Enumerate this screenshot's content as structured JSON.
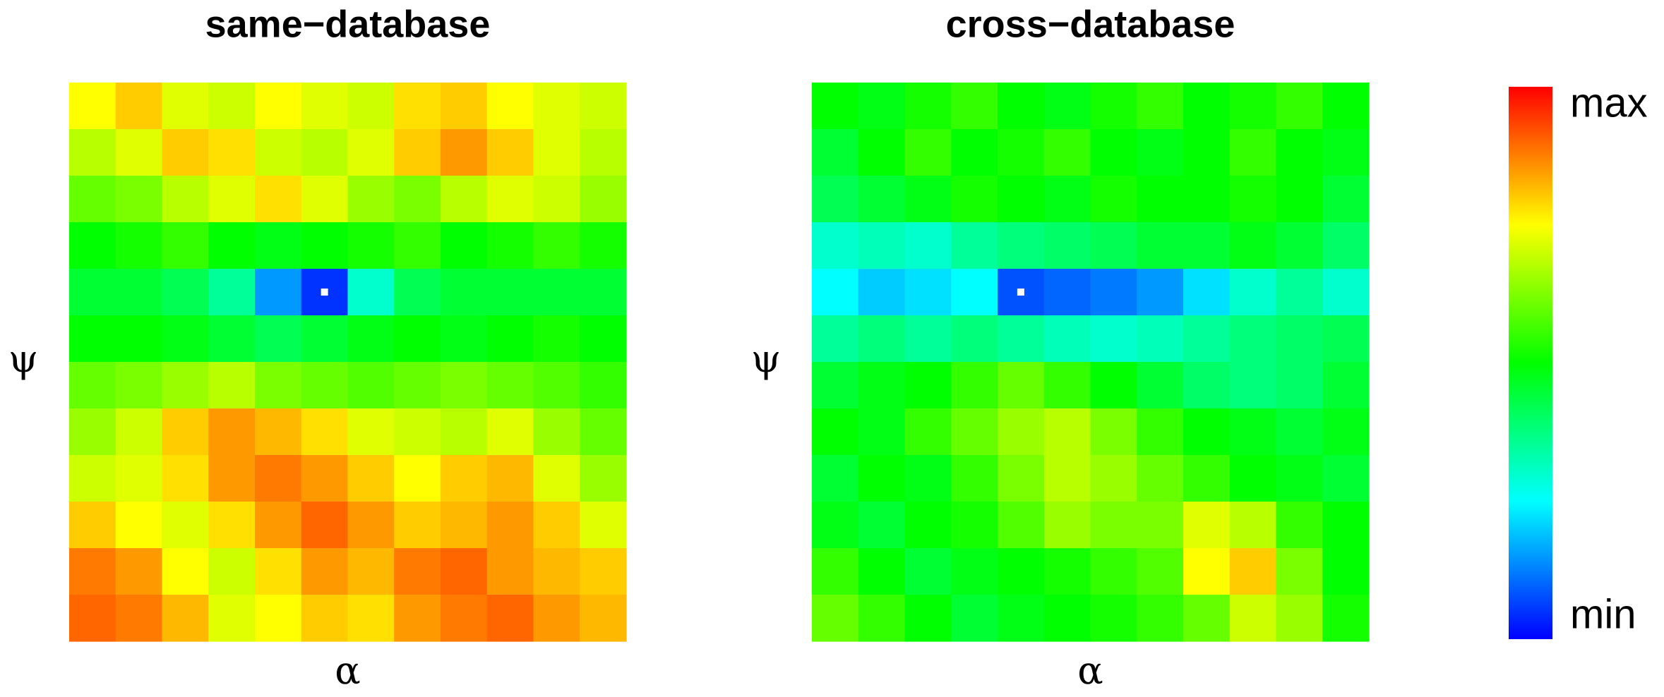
{
  "chart_data": [
    {
      "type": "heatmap",
      "title": "same−database",
      "xlabel": "α",
      "ylabel": "ψ",
      "zlim": [
        0,
        1
      ],
      "z": [
        [
          0.75,
          0.8,
          0.72,
          0.7,
          0.75,
          0.72,
          0.7,
          0.78,
          0.8,
          0.75,
          0.72,
          0.7
        ],
        [
          0.68,
          0.72,
          0.8,
          0.78,
          0.7,
          0.68,
          0.72,
          0.8,
          0.85,
          0.8,
          0.72,
          0.68
        ],
        [
          0.6,
          0.62,
          0.68,
          0.72,
          0.78,
          0.72,
          0.65,
          0.62,
          0.68,
          0.72,
          0.7,
          0.65
        ],
        [
          0.5,
          0.52,
          0.55,
          0.5,
          0.48,
          0.5,
          0.52,
          0.55,
          0.5,
          0.52,
          0.55,
          0.52
        ],
        [
          0.45,
          0.45,
          0.42,
          0.35,
          0.15,
          0.05,
          0.3,
          0.42,
          0.45,
          0.45,
          0.45,
          0.45
        ],
        [
          0.5,
          0.5,
          0.48,
          0.45,
          0.42,
          0.45,
          0.48,
          0.5,
          0.48,
          0.5,
          0.52,
          0.5
        ],
        [
          0.6,
          0.62,
          0.65,
          0.68,
          0.62,
          0.6,
          0.58,
          0.6,
          0.62,
          0.6,
          0.58,
          0.55
        ],
        [
          0.65,
          0.7,
          0.8,
          0.85,
          0.82,
          0.78,
          0.72,
          0.7,
          0.68,
          0.72,
          0.65,
          0.6
        ],
        [
          0.7,
          0.72,
          0.78,
          0.85,
          0.88,
          0.85,
          0.8,
          0.75,
          0.8,
          0.82,
          0.72,
          0.65
        ],
        [
          0.8,
          0.75,
          0.72,
          0.78,
          0.85,
          0.9,
          0.85,
          0.8,
          0.82,
          0.85,
          0.8,
          0.72
        ],
        [
          0.88,
          0.85,
          0.75,
          0.7,
          0.78,
          0.85,
          0.82,
          0.88,
          0.9,
          0.85,
          0.82,
          0.8
        ],
        [
          0.9,
          0.88,
          0.82,
          0.72,
          0.75,
          0.8,
          0.78,
          0.85,
          0.88,
          0.9,
          0.85,
          0.82
        ]
      ]
    },
    {
      "type": "heatmap",
      "title": "cross−database",
      "xlabel": "α",
      "ylabel": "ψ",
      "zlim": [
        0,
        1
      ],
      "z": [
        [
          0.5,
          0.48,
          0.52,
          0.55,
          0.5,
          0.48,
          0.52,
          0.55,
          0.5,
          0.52,
          0.55,
          0.5
        ],
        [
          0.45,
          0.5,
          0.55,
          0.5,
          0.52,
          0.55,
          0.5,
          0.48,
          0.5,
          0.55,
          0.5,
          0.48
        ],
        [
          0.42,
          0.45,
          0.48,
          0.52,
          0.5,
          0.48,
          0.52,
          0.5,
          0.5,
          0.52,
          0.5,
          0.45
        ],
        [
          0.3,
          0.32,
          0.3,
          0.35,
          0.38,
          0.4,
          0.42,
          0.45,
          0.45,
          0.48,
          0.45,
          0.4
        ],
        [
          0.25,
          0.2,
          0.22,
          0.25,
          0.08,
          0.1,
          0.12,
          0.15,
          0.22,
          0.3,
          0.35,
          0.3
        ],
        [
          0.35,
          0.38,
          0.35,
          0.38,
          0.35,
          0.32,
          0.3,
          0.32,
          0.35,
          0.38,
          0.4,
          0.42
        ],
        [
          0.45,
          0.48,
          0.5,
          0.55,
          0.6,
          0.55,
          0.5,
          0.45,
          0.4,
          0.38,
          0.4,
          0.45
        ],
        [
          0.5,
          0.48,
          0.55,
          0.6,
          0.65,
          0.68,
          0.62,
          0.55,
          0.5,
          0.48,
          0.45,
          0.48
        ],
        [
          0.45,
          0.5,
          0.48,
          0.55,
          0.62,
          0.68,
          0.65,
          0.6,
          0.55,
          0.5,
          0.48,
          0.45
        ],
        [
          0.48,
          0.45,
          0.5,
          0.52,
          0.58,
          0.65,
          0.62,
          0.62,
          0.72,
          0.68,
          0.55,
          0.5
        ],
        [
          0.55,
          0.5,
          0.45,
          0.48,
          0.5,
          0.52,
          0.55,
          0.58,
          0.75,
          0.8,
          0.62,
          0.5
        ],
        [
          0.6,
          0.55,
          0.5,
          0.45,
          0.48,
          0.5,
          0.52,
          0.55,
          0.6,
          0.7,
          0.65,
          0.52
        ]
      ]
    }
  ],
  "colorbar": {
    "lim": [
      0,
      1
    ],
    "ticks": [
      {
        "value": 0,
        "label": "min"
      },
      {
        "value": 1,
        "label": "max"
      }
    ]
  }
}
